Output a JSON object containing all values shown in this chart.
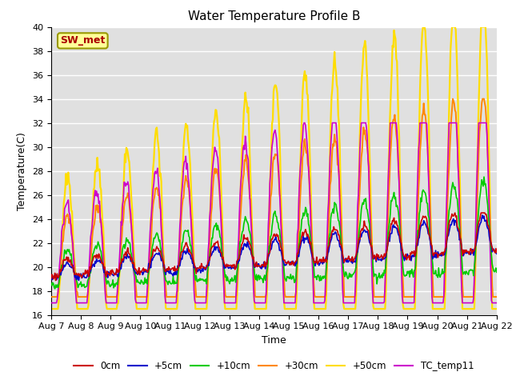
{
  "title": "Water Temperature Profile B",
  "xlabel": "Time",
  "ylabel": "Temperature(C)",
  "ylim": [
    16,
    40
  ],
  "yticks": [
    16,
    18,
    20,
    22,
    24,
    26,
    28,
    30,
    32,
    34,
    36,
    38,
    40
  ],
  "xtick_labels": [
    "Aug 7",
    "Aug 8",
    "Aug 9",
    "Aug 10",
    "Aug 11",
    "Aug 12",
    "Aug 13",
    "Aug 14",
    "Aug 15",
    "Aug 16",
    "Aug 17",
    "Aug 18",
    "Aug 19",
    "Aug 20",
    "Aug 21",
    "Aug 22"
  ],
  "legend_labels": [
    "0cm",
    "+5cm",
    "+10cm",
    "+30cm",
    "+50cm",
    "TC_temp11"
  ],
  "line_colors": [
    "#cc0000",
    "#0000cc",
    "#00cc00",
    "#ff8800",
    "#ffdd00",
    "#cc00cc"
  ],
  "line_widths": [
    1.2,
    1.2,
    1.2,
    1.4,
    1.6,
    1.2
  ],
  "bg_color": "#e0e0e0",
  "annotation_text": "SW_met",
  "annotation_color": "#aa0000",
  "annotation_bg": "#ffff99",
  "n_points": 600
}
